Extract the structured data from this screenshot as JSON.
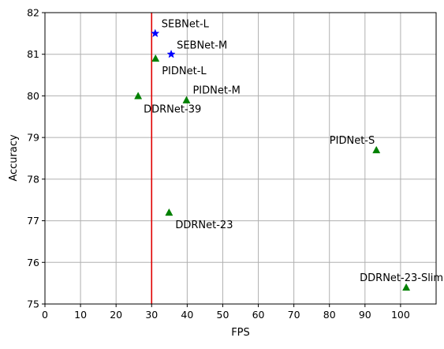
{
  "chart_data": {
    "type": "scatter",
    "title": "",
    "xlabel": "FPS",
    "ylabel": "Accuracy",
    "xlim": [
      0,
      110
    ],
    "ylim": [
      75,
      82
    ],
    "xticks": [
      "0",
      "10",
      "20",
      "30",
      "40",
      "50",
      "60",
      "70",
      "80",
      "90",
      "100"
    ],
    "yticks": [
      "75",
      "76",
      "77",
      "78",
      "79",
      "80",
      "81",
      "82"
    ],
    "grid": true,
    "reference_line": {
      "axis": "x",
      "value": 30,
      "color": "#e00000"
    },
    "series": [
      {
        "marker": "star",
        "color": "#0000ff",
        "points": [
          {
            "label": "SEBNet-L",
            "x": 31,
            "y": 81.5
          },
          {
            "label": "SEBNet-M",
            "x": 35.5,
            "y": 81.0
          }
        ]
      },
      {
        "marker": "triangle",
        "color": "#008000",
        "points": [
          {
            "label": "PIDNet-L",
            "x": 31.1,
            "y": 80.9
          },
          {
            "label": "PIDNet-M",
            "x": 39.8,
            "y": 79.9
          },
          {
            "label": "DDRNet-39",
            "x": 26.2,
            "y": 80.0
          },
          {
            "label": "PIDNet-S",
            "x": 93.2,
            "y": 78.7
          },
          {
            "label": "DDRNet-23",
            "x": 34.9,
            "y": 77.2
          },
          {
            "label": "DDRNet-23-Slim",
            "x": 101.6,
            "y": 75.4
          }
        ]
      }
    ]
  }
}
